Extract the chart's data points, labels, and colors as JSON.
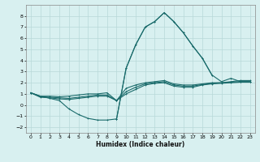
{
  "title": "",
  "xlabel": "Humidex (Indice chaleur)",
  "ylabel": "",
  "bg_color": "#d8f0f0",
  "grid_color": "#b8d8d8",
  "line_color": "#1a6b6b",
  "xlim": [
    -0.5,
    23.5
  ],
  "ylim": [
    -2.5,
    9.0
  ],
  "yticks": [
    -2,
    -1,
    0,
    1,
    2,
    3,
    4,
    5,
    6,
    7,
    8
  ],
  "xticks": [
    0,
    1,
    2,
    3,
    4,
    5,
    6,
    7,
    8,
    9,
    10,
    11,
    12,
    13,
    14,
    15,
    16,
    17,
    18,
    19,
    20,
    21,
    22,
    23
  ],
  "series": [
    {
      "x": [
        0,
        1,
        2,
        3,
        4,
        5,
        6,
        7,
        8,
        9,
        10,
        11,
        12,
        13,
        14,
        15,
        16,
        17,
        18,
        19,
        20,
        21,
        22,
        23
      ],
      "y": [
        1.1,
        0.8,
        0.8,
        0.75,
        0.8,
        0.9,
        1.0,
        1.0,
        1.1,
        0.4,
        1.5,
        1.8,
        2.0,
        2.1,
        2.2,
        1.9,
        1.8,
        1.8,
        1.9,
        2.0,
        2.0,
        2.1,
        2.2,
        2.2
      ]
    },
    {
      "x": [
        0,
        1,
        2,
        3,
        4,
        5,
        6,
        7,
        8,
        9,
        10,
        11,
        12,
        13,
        14,
        15,
        16,
        17,
        18,
        19,
        20,
        21,
        22,
        23
      ],
      "y": [
        1.1,
        0.75,
        0.7,
        0.65,
        0.6,
        0.7,
        0.8,
        0.9,
        0.9,
        0.4,
        1.2,
        1.6,
        1.9,
        2.0,
        2.1,
        1.8,
        1.7,
        1.7,
        1.85,
        1.95,
        2.0,
        2.05,
        2.1,
        2.1
      ]
    },
    {
      "x": [
        0,
        1,
        2,
        3,
        4,
        5,
        6,
        7,
        8,
        9,
        10,
        11,
        12,
        13,
        14,
        15,
        16,
        17,
        18,
        19,
        20,
        21,
        22,
        23
      ],
      "y": [
        1.1,
        0.7,
        0.65,
        0.55,
        0.5,
        0.6,
        0.7,
        0.8,
        0.8,
        0.4,
        1.0,
        1.4,
        1.8,
        1.95,
        2.0,
        1.7,
        1.6,
        1.6,
        1.8,
        1.9,
        1.95,
        2.0,
        2.05,
        2.05
      ]
    },
    {
      "x": [
        0,
        1,
        2,
        3,
        4,
        5,
        6,
        7,
        8,
        9
      ],
      "y": [
        1.1,
        0.8,
        0.6,
        0.4,
        -0.35,
        -0.85,
        -1.2,
        -1.35,
        -1.35,
        -1.25
      ]
    },
    {
      "x": [
        9,
        10,
        11,
        12,
        13,
        14,
        15,
        16,
        17,
        18,
        19
      ],
      "y": [
        -1.25,
        3.3,
        5.4,
        7.0,
        7.5,
        8.3,
        7.5,
        6.5,
        5.3,
        4.2,
        2.7
      ]
    },
    {
      "x": [
        9,
        10,
        11,
        12,
        13,
        14,
        15,
        16,
        17,
        18,
        19,
        20,
        21,
        22,
        23
      ],
      "y": [
        -1.25,
        3.3,
        5.4,
        7.0,
        7.5,
        8.3,
        7.5,
        6.5,
        5.3,
        4.2,
        2.7,
        2.1,
        2.4,
        2.1,
        2.1
      ]
    }
  ]
}
